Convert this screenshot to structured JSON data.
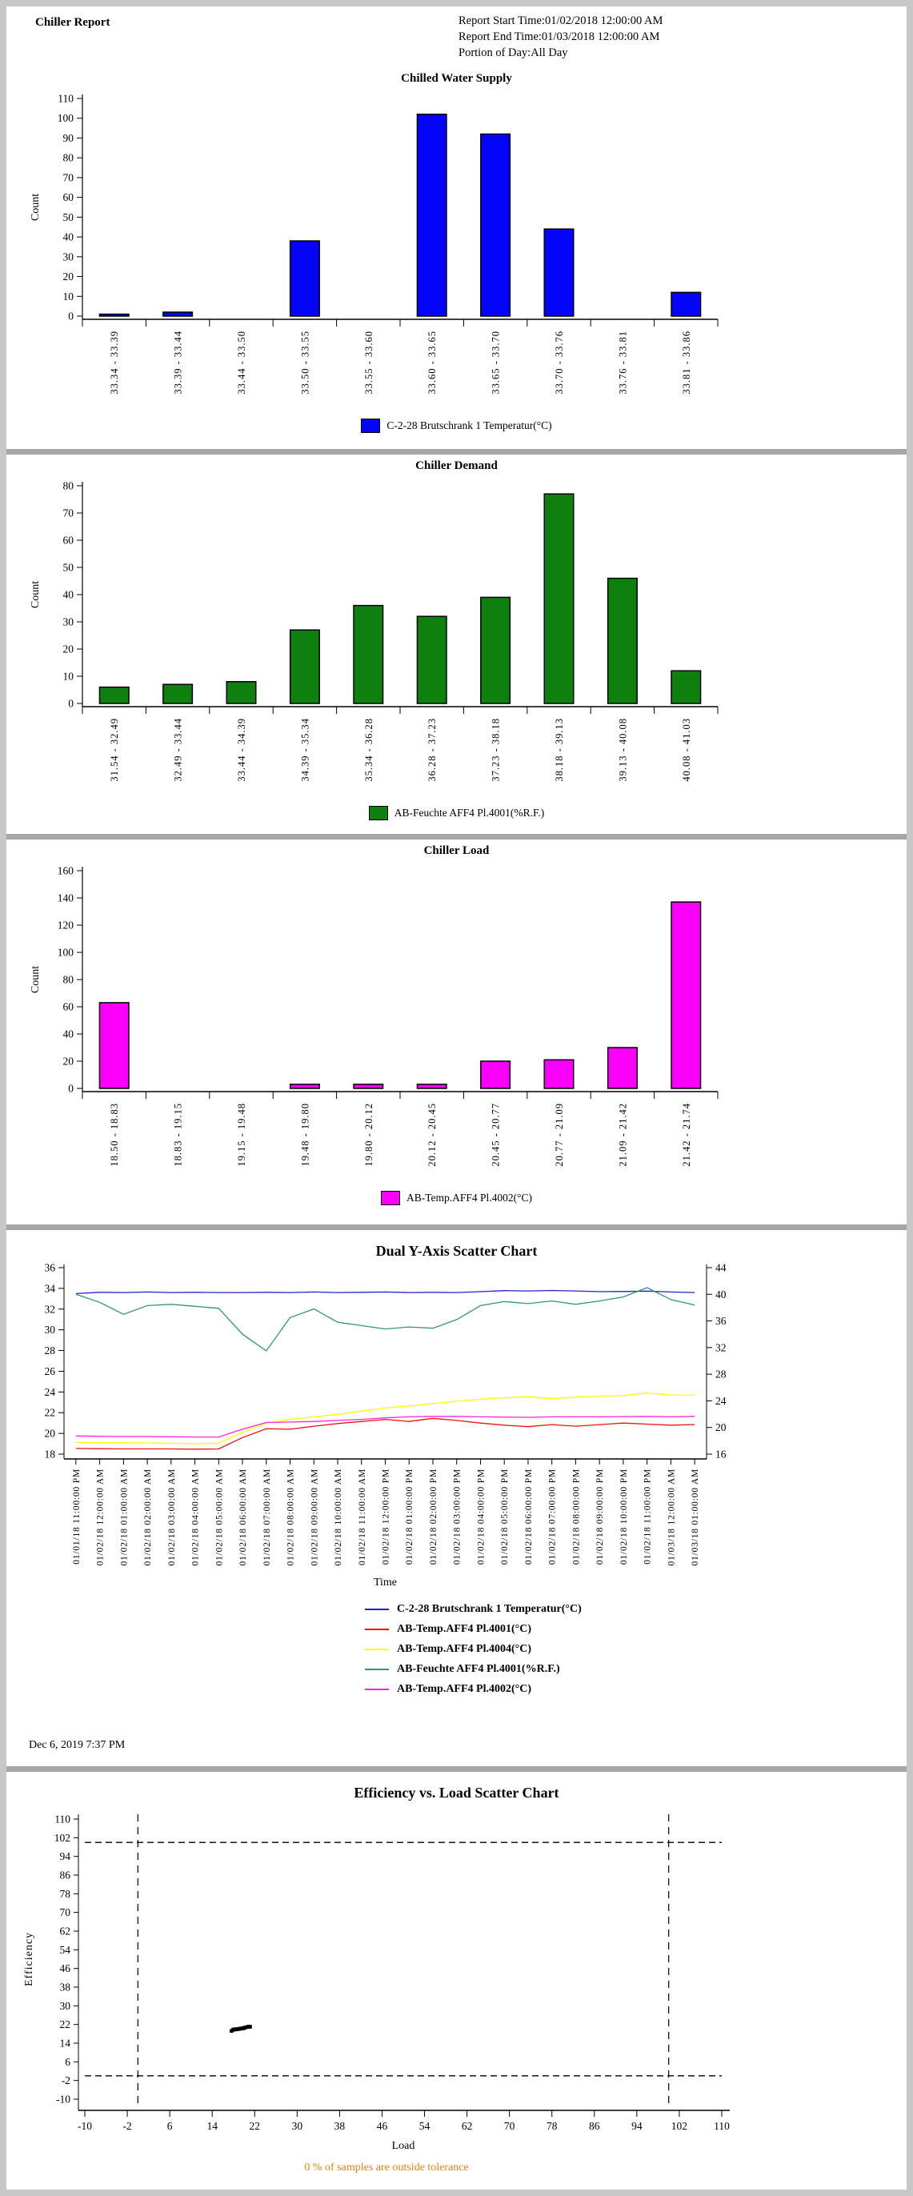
{
  "page": {
    "header": {
      "title": "Chiller Report",
      "start_time": "Report Start Time:01/02/2018 12:00:00 AM",
      "end_time": "Report End Time:01/03/2018 12:00:00 AM",
      "portion": "Portion of Day:All Day"
    },
    "generated": "Dec 6, 2019 7:37 PM"
  },
  "chart_data": [
    {
      "type": "bar",
      "title": "Chilled Water Supply",
      "ylabel": "Count",
      "ylim": [
        0,
        110
      ],
      "ytick_step": 10,
      "color": "#0404f8",
      "legend": "C-2-28 Brutschrank 1 Temperatur(°C)",
      "categories": [
        "33.34 - 33.39",
        "33.39 - 33.44",
        "33.44 - 33.50",
        "33.50 - 33.55",
        "33.55 - 33.60",
        "33.60 - 33.65",
        "33.65 - 33.70",
        "33.70 - 33.76",
        "33.76 - 33.81",
        "33.81 - 33.86"
      ],
      "values": [
        1,
        2,
        0,
        38,
        0,
        102,
        92,
        44,
        0,
        12
      ]
    },
    {
      "type": "bar",
      "title": "Chiller Demand",
      "ylabel": "Count",
      "ylim": [
        0,
        80
      ],
      "ytick_step": 10,
      "color": "#0d800d",
      "legend": "AB-Feuchte AFF4 Pl.4001(%R.F.)",
      "categories": [
        "31.54 - 32.49",
        "32.49 - 33.44",
        "33.44 - 34.39",
        "34.39 - 35.34",
        "35.34 - 36.28",
        "36.28 - 37.23",
        "37.23 - 38.18",
        "38.18 - 39.13",
        "39.13 - 40.08",
        "40.08 - 41.03"
      ],
      "values": [
        6,
        7,
        8,
        27,
        36,
        32,
        39,
        77,
        46,
        12
      ]
    },
    {
      "type": "bar",
      "title": "Chiller Load",
      "ylabel": "Count",
      "ylim": [
        0,
        160
      ],
      "ytick_step": 20,
      "color": "#fa00fa",
      "legend": "AB-Temp.AFF4 Pl.4002(°C)",
      "categories": [
        "18.50 - 18.83",
        "18.83 - 19.15",
        "19.15 - 19.48",
        "19.48 - 19.80",
        "19.80 - 20.12",
        "20.12 - 20.45",
        "20.45 - 20.77",
        "20.77 - 21.09",
        "21.09 - 21.42",
        "21.42 - 21.74"
      ],
      "values": [
        63,
        0,
        0,
        3,
        3,
        3,
        20,
        21,
        30,
        137
      ]
    },
    {
      "type": "line",
      "title": "Dual Y-Axis Scatter Chart",
      "xlabel": "Time",
      "left_ylim": [
        18,
        36
      ],
      "left_step": 2,
      "right_ylim": [
        16,
        44
      ],
      "right_step": 4,
      "x_labels": [
        "01/01/18 11:00:00 PM",
        "01/02/18 12:00:00 AM",
        "01/02/18 01:00:00 AM",
        "01/02/18 02:00:00 AM",
        "01/02/18 03:00:00 AM",
        "01/02/18 04:00:00 AM",
        "01/02/18 05:00:00 AM",
        "01/02/18 06:00:00 AM",
        "01/02/18 07:00:00 AM",
        "01/02/18 08:00:00 AM",
        "01/02/18 09:00:00 AM",
        "01/02/18 10:00:00 AM",
        "01/02/18 11:00:00 AM",
        "01/02/18 12:00:00 PM",
        "01/02/18 01:00:00 PM",
        "01/02/18 02:00:00 PM",
        "01/02/18 03:00:00 PM",
        "01/02/18 04:00:00 PM",
        "01/02/18 05:00:00 PM",
        "01/02/18 06:00:00 PM",
        "01/02/18 07:00:00 PM",
        "01/02/18 08:00:00 PM",
        "01/02/18 09:00:00 PM",
        "01/02/18 10:00:00 PM",
        "01/02/18 11:00:00 PM",
        "01/03/18 12:00:00 AM",
        "01/03/18 01:00:00 AM"
      ],
      "series": [
        {
          "name": "C-2-28 Brutschrank 1 Temperatur(°C)",
          "color": "#2222cc",
          "axis": "left",
          "values": [
            33.5,
            33.62,
            33.6,
            33.65,
            33.6,
            33.62,
            33.6,
            33.6,
            33.62,
            33.6,
            33.65,
            33.6,
            33.62,
            33.65,
            33.6,
            33.62,
            33.6,
            33.68,
            33.78,
            33.75,
            33.8,
            33.75,
            33.68,
            33.7,
            33.74,
            33.65,
            33.6
          ]
        },
        {
          "name": "AB-Temp.AFF4 Pl.4001(°C)",
          "color": "#ee1111",
          "axis": "left",
          "values": [
            18.55,
            18.52,
            18.5,
            18.5,
            18.5,
            18.48,
            18.5,
            19.6,
            20.45,
            20.4,
            20.7,
            20.95,
            21.15,
            21.35,
            21.15,
            21.45,
            21.25,
            21.0,
            20.8,
            20.65,
            20.85,
            20.7,
            20.85,
            21.0,
            20.9,
            20.8,
            20.85
          ]
        },
        {
          "name": "AB-Temp.AFF4 Pl.4004(°C)",
          "color": "#ffff00",
          "axis": "left",
          "values": [
            19.15,
            19.1,
            19.1,
            19.08,
            19.05,
            19.0,
            19.05,
            20.1,
            21.0,
            21.35,
            21.6,
            21.85,
            22.15,
            22.45,
            22.65,
            22.9,
            23.1,
            23.3,
            23.45,
            23.55,
            23.35,
            23.5,
            23.6,
            23.65,
            23.9,
            23.7,
            23.68
          ]
        },
        {
          "name": "AB-Feuchte AFF4 Pl.4001(%R.F.)",
          "color": "#339966",
          "axis": "right",
          "values": [
            40.0,
            38.8,
            37.0,
            38.3,
            38.5,
            38.2,
            37.9,
            34.0,
            31.5,
            36.5,
            37.8,
            35.8,
            35.3,
            34.8,
            35.1,
            34.9,
            36.2,
            38.3,
            38.9,
            38.6,
            39.0,
            38.5,
            39.0,
            39.6,
            41.0,
            39.2,
            38.4
          ]
        },
        {
          "name": "AB-Temp.AFF4 Pl.4002(°C)",
          "color": "#ff22dd",
          "axis": "left",
          "values": [
            19.75,
            19.72,
            19.7,
            19.7,
            19.68,
            19.65,
            19.65,
            20.4,
            21.05,
            21.1,
            21.15,
            21.25,
            21.35,
            21.5,
            21.6,
            21.65,
            21.65,
            21.6,
            21.58,
            21.55,
            21.6,
            21.6,
            21.6,
            21.62,
            21.65,
            21.6,
            21.65
          ]
        }
      ]
    },
    {
      "type": "scatter",
      "title": "Efficiency vs. Load Scatter Chart",
      "xlabel": "Load",
      "ylabel": "Efficiency",
      "xlim": [
        -10,
        110
      ],
      "ylim": [
        -10,
        110
      ],
      "tick_step": 8,
      "point_color": "#000000",
      "tolerance": {
        "load": [
          0,
          100
        ],
        "efficiency": [
          0,
          100
        ]
      },
      "points": [
        [
          17.6,
          19.3
        ],
        [
          17.9,
          19.8
        ],
        [
          18.1,
          20.0
        ],
        [
          18.3,
          19.9
        ],
        [
          18.5,
          20.1
        ],
        [
          18.8,
          20.1
        ],
        [
          19.1,
          20.2
        ],
        [
          19.4,
          20.4
        ],
        [
          19.7,
          20.4
        ],
        [
          20.0,
          20.6
        ],
        [
          20.2,
          20.8
        ],
        [
          20.5,
          21.0
        ],
        [
          20.8,
          21.0
        ],
        [
          21.1,
          21.1
        ],
        [
          19.9,
          20.5
        ],
        [
          19.2,
          20.3
        ],
        [
          18.6,
          20.0
        ],
        [
          20.9,
          21.2
        ]
      ],
      "note": "0 % of samples are outside tolerance",
      "note_color": "#f08000"
    }
  ]
}
